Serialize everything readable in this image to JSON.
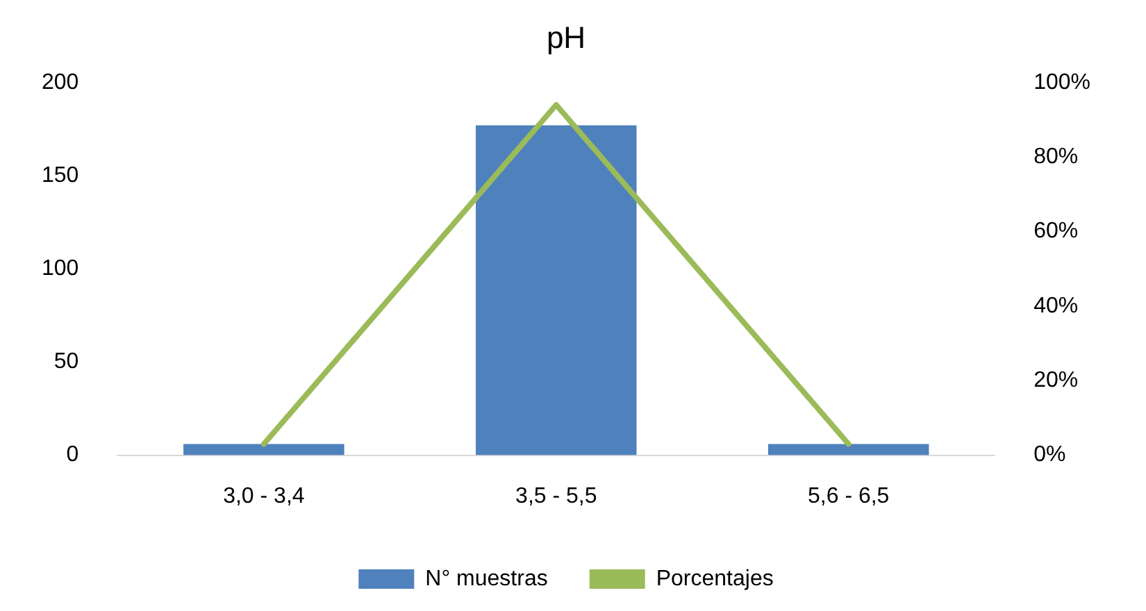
{
  "chart_data": {
    "type": "bar",
    "title": "pH",
    "categories": [
      "3,0 - 3,4",
      "3,5 - 5,5",
      "5,6 - 6,5"
    ],
    "series": [
      {
        "name": "N° muestras",
        "color": "#4f81bd",
        "values": [
          6,
          177,
          6
        ]
      },
      {
        "name": "Porcentajes",
        "type": "line",
        "axis": "y2",
        "color": "#9bbb59",
        "values": [
          3,
          94,
          3
        ]
      }
    ],
    "ylim": [
      0,
      200
    ],
    "yticks": [
      0,
      50,
      100,
      150,
      200
    ],
    "y2lim": [
      0,
      100
    ],
    "y2ticks": [
      {
        "value": 0,
        "label": "0%"
      },
      {
        "value": 20,
        "label": "20%"
      },
      {
        "value": 40,
        "label": "40%"
      },
      {
        "value": 60,
        "label": "60%"
      },
      {
        "value": 80,
        "label": "80%"
      },
      {
        "value": 100,
        "label": "100%"
      }
    ],
    "grid": false,
    "legend": "bottom",
    "marker": "none"
  }
}
